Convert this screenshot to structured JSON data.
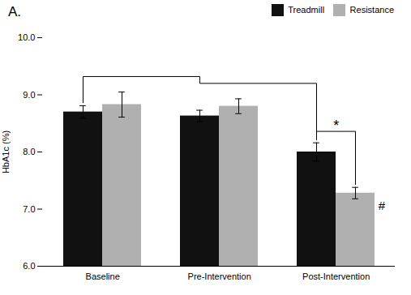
{
  "chart_data": {
    "type": "bar",
    "title": "A.",
    "categories": [
      "Baseline",
      "Pre-Intervention",
      "Post-Intervention"
    ],
    "series": [
      {
        "name": "Treadmill",
        "color": "#111111",
        "values": [
          8.7,
          8.63,
          8.0
        ],
        "errors": [
          0.11,
          0.1,
          0.16
        ]
      },
      {
        "name": "Resistance",
        "color": "#b0b0b0",
        "values": [
          8.83,
          8.8,
          7.28
        ],
        "errors": [
          0.22,
          0.13,
          0.1
        ]
      }
    ],
    "ylabel": "HbA1c (%)",
    "ylim": [
      6,
      10
    ],
    "yticks": [
      6,
      7,
      8,
      9,
      10
    ],
    "legend": "upper right",
    "annotations": [
      {
        "text": "*",
        "category": "Post-Intervention",
        "series": [
          "Treadmill",
          "Resistance"
        ]
      },
      {
        "text": "#",
        "category": "Post-Intervention",
        "series": "Resistance"
      },
      {
        "categories": [
          "Baseline",
          "Pre-Intervention",
          "Post-Intervention"
        ],
        "series": "Treadmill"
      }
    ]
  }
}
